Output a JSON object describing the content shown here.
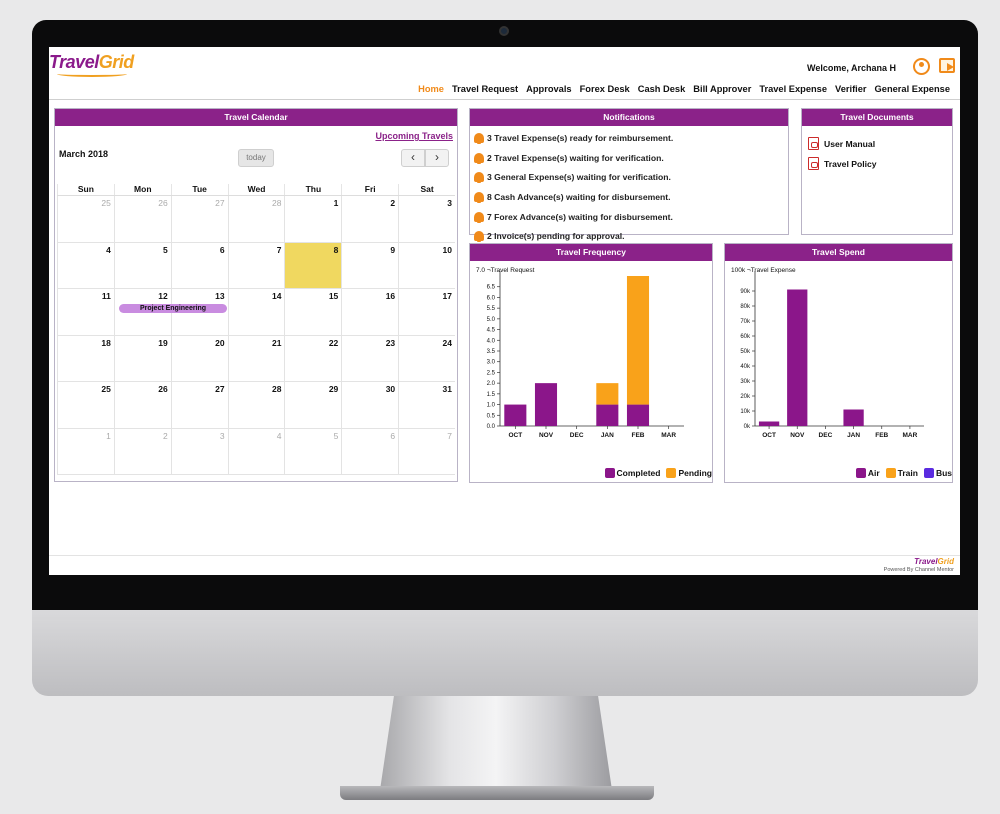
{
  "app": {
    "logo_main": "Travel",
    "logo_accent": "Grid",
    "welcome": "Welcome, Archana H"
  },
  "nav": [
    "Home",
    "Travel Request",
    "Approvals",
    "Forex Desk",
    "Cash Desk",
    "Bill Approver",
    "Travel Expense",
    "Verifier",
    "General Expense"
  ],
  "nav_active": "Home",
  "calendar": {
    "title": "Travel Calendar",
    "upcoming_link": "Upcoming Travels",
    "month": "March 2018",
    "today_label": "today",
    "prev": "‹",
    "next": "›",
    "days_of_week": [
      "Sun",
      "Mon",
      "Tue",
      "Wed",
      "Thu",
      "Fri",
      "Sat"
    ],
    "weeks": [
      [
        "25",
        "26",
        "27",
        "28",
        "1",
        "2",
        "3"
      ],
      [
        "4",
        "5",
        "6",
        "7",
        "8",
        "9",
        "10"
      ],
      [
        "11",
        "12",
        "13",
        "14",
        "15",
        "16",
        "17"
      ],
      [
        "18",
        "19",
        "20",
        "21",
        "22",
        "23",
        "24"
      ],
      [
        "25",
        "26",
        "27",
        "28",
        "29",
        "30",
        "31"
      ],
      [
        "1",
        "2",
        "3",
        "4",
        "5",
        "6",
        "7"
      ]
    ],
    "today": "8",
    "event": {
      "label": "Project Engineering",
      "week": 2,
      "days": "Mon-Tue"
    }
  },
  "notifications": {
    "title": "Notifications",
    "items": [
      "3 Travel Expense(s) ready for reimbursement.",
      "2 Travel Expense(s) waiting for verification.",
      "3 General Expense(s) waiting for verification.",
      "8 Cash Advance(s) waiting for disbursement.",
      "7 Forex Advance(s) waiting for disbursement.",
      "2 Invoice(s) pending for approval."
    ]
  },
  "documents": {
    "title": "Travel Documents",
    "items": [
      "User Manual",
      "Travel Policy"
    ]
  },
  "chart_data": [
    {
      "type": "bar",
      "title": "Travel Frequency",
      "ylabel": "Travel Request",
      "categories": [
        "OCT",
        "NOV",
        "DEC",
        "JAN",
        "FEB",
        "MAR"
      ],
      "series": [
        {
          "name": "Completed",
          "color": "#8b168a",
          "values": [
            1,
            2,
            0,
            1,
            1,
            0
          ]
        },
        {
          "name": "Pending",
          "color": "#f9a21a",
          "values": [
            0,
            0,
            0,
            1,
            6,
            0
          ]
        }
      ],
      "stacked": true,
      "ylim": [
        0,
        7
      ],
      "yticks": [
        "0.0",
        "0.5",
        "1.0",
        "1.5",
        "2.0",
        "2.5",
        "3.0",
        "3.5",
        "4.0",
        "4.5",
        "5.0",
        "5.5",
        "6.0",
        "6.5",
        "7.0"
      ],
      "legend": "bottom-right"
    },
    {
      "type": "bar",
      "title": "Travel Spend",
      "ylabel": "Travel Expense",
      "categories": [
        "OCT",
        "NOV",
        "DEC",
        "JAN",
        "FEB",
        "MAR"
      ],
      "series": [
        {
          "name": "Air",
          "color": "#8b168a",
          "values": [
            3000,
            91000,
            0,
            11000,
            0,
            0
          ]
        },
        {
          "name": "Train",
          "color": "#f9a21a",
          "values": [
            0,
            0,
            0,
            0,
            0,
            0
          ]
        },
        {
          "name": "Bus",
          "color": "#5a2be0",
          "values": [
            0,
            0,
            0,
            0,
            0,
            0
          ]
        }
      ],
      "stacked": true,
      "ylim": [
        0,
        100000
      ],
      "yticks": [
        "0k",
        "10k",
        "20k",
        "30k",
        "40k",
        "50k",
        "60k",
        "70k",
        "80k",
        "90k",
        "100k"
      ],
      "legend": "bottom-right"
    }
  ],
  "footer": {
    "logo_main": "Travel",
    "logo_accent": "Grid",
    "powered": "Powered By Channel Mentor"
  }
}
